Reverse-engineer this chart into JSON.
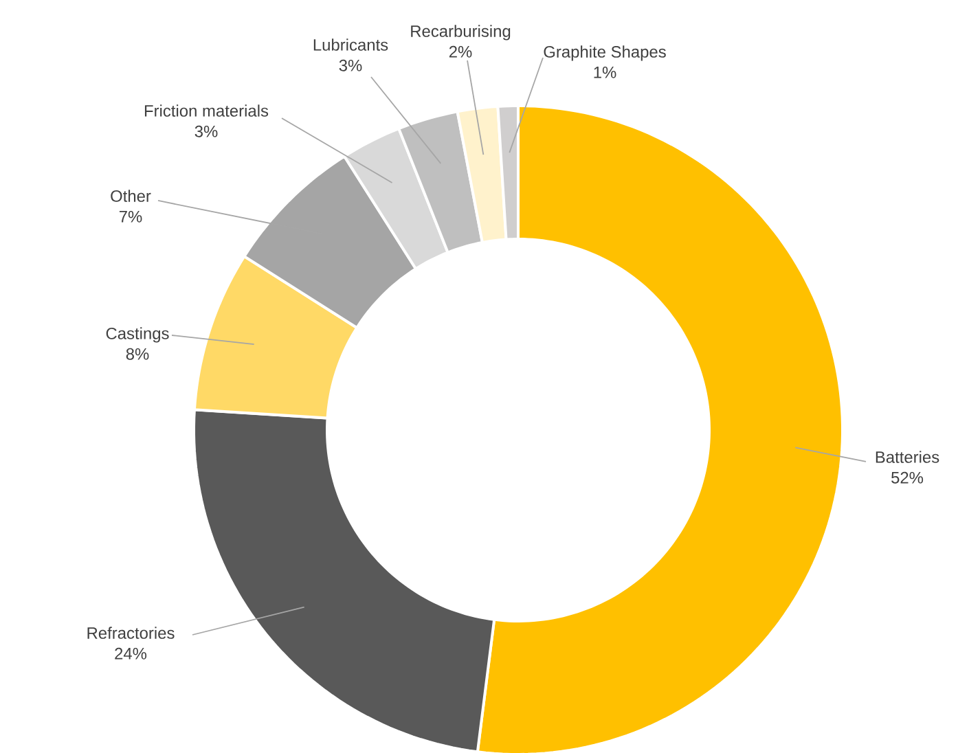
{
  "chart_data": {
    "type": "donut",
    "categories": [
      "Batteries",
      "Refractories",
      "Castings",
      "Other",
      "Friction materials",
      "Lubricants",
      "Recarburising",
      "Graphite Shapes"
    ],
    "values": [
      52,
      24,
      8,
      7,
      3,
      3,
      2,
      1
    ],
    "value_labels": [
      "52%",
      "24%",
      "8%",
      "7%",
      "3%",
      "3%",
      "2%",
      "1%"
    ],
    "colors": [
      "#ffc000",
      "#595959",
      "#ffd966",
      "#a5a5a5",
      "#d9d9d9",
      "#bfbfbf",
      "#fff2cc",
      "#d0cece"
    ]
  }
}
